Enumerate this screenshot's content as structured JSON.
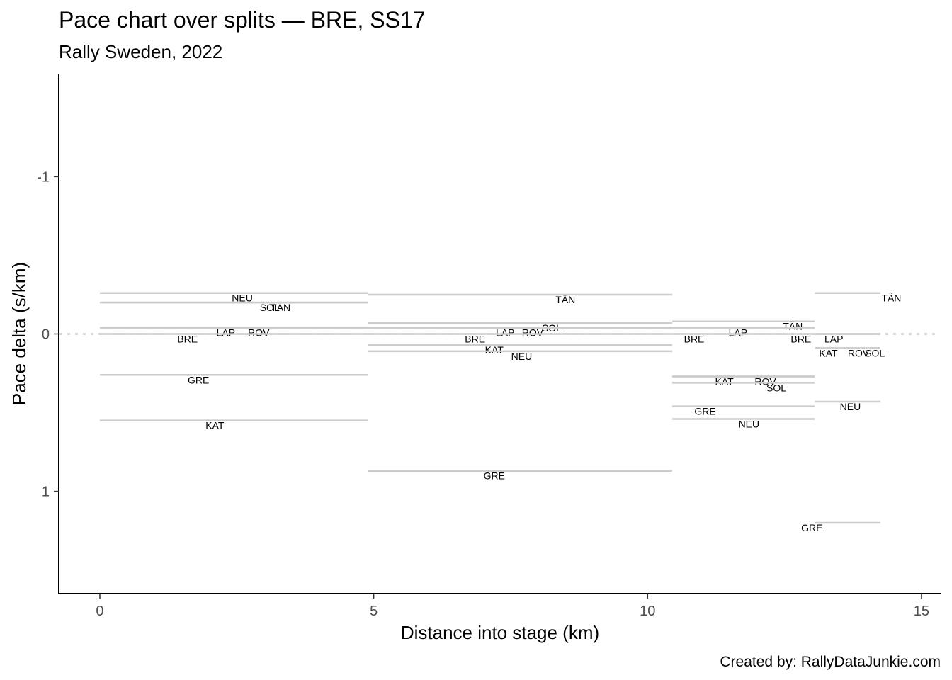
{
  "chart_data": {
    "type": "segment",
    "title": "Pace chart over splits — BRE, SS17",
    "subtitle": "Rally Sweden, 2022",
    "xlabel": "Distance into stage (km)",
    "ylabel": "Pace delta (s/km)",
    "caption": "Created by: RallyDataJunkie.com",
    "xlim": [
      -0.75,
      15.35
    ],
    "ylim": [
      1.65,
      -1.65
    ],
    "y_reversed": true,
    "xticks": [
      0,
      5,
      10,
      15
    ],
    "yticks": [
      -1,
      0,
      1
    ],
    "ytick_labels": [
      "-1",
      "0",
      "1"
    ],
    "reference_line": {
      "y": 0,
      "style": "dotted"
    },
    "grid": false,
    "splits": [
      {
        "start": 0,
        "end": 4.9,
        "drivers": [
          {
            "code": "NEU",
            "delta": -0.26,
            "label_x": 2.6
          },
          {
            "code": "TÄN",
            "delta": -0.2,
            "label_x": 3.3
          },
          {
            "code": "SOL",
            "delta": -0.2,
            "label_x": 3.1
          },
          {
            "code": "ROV",
            "delta": -0.04,
            "label_x": 2.9
          },
          {
            "code": "LAP",
            "delta": -0.04,
            "label_x": 2.3
          },
          {
            "code": "BRE",
            "delta": 0.0,
            "label_x": 1.6
          },
          {
            "code": "GRE",
            "delta": 0.26,
            "label_x": 1.8
          },
          {
            "code": "KAT",
            "delta": 0.55,
            "label_x": 2.1
          }
        ]
      },
      {
        "start": 4.9,
        "end": 10.45,
        "drivers": [
          {
            "code": "TÄN",
            "delta": -0.25,
            "label_x": 8.5
          },
          {
            "code": "SOL",
            "delta": -0.07,
            "label_x": 8.25
          },
          {
            "code": "ROV",
            "delta": -0.04,
            "label_x": 7.9
          },
          {
            "code": "LAP",
            "delta": -0.04,
            "label_x": 7.4
          },
          {
            "code": "BRE",
            "delta": 0.0,
            "label_x": 6.85
          },
          {
            "code": "KAT",
            "delta": 0.07,
            "label_x": 7.2
          },
          {
            "code": "NEU",
            "delta": 0.11,
            "label_x": 7.7
          },
          {
            "code": "GRE",
            "delta": 0.87,
            "label_x": 7.2
          }
        ]
      },
      {
        "start": 10.45,
        "end": 13.05,
        "drivers": [
          {
            "code": "TÄN",
            "delta": -0.08,
            "label_x": 12.65
          },
          {
            "code": "LAP",
            "delta": -0.04,
            "label_x": 11.65
          },
          {
            "code": "BRE",
            "delta": 0.0,
            "label_x": 10.85
          },
          {
            "code": "ROV",
            "delta": 0.27,
            "label_x": 12.15
          },
          {
            "code": "KAT",
            "delta": 0.27,
            "label_x": 11.4
          },
          {
            "code": "SOL",
            "delta": 0.31,
            "label_x": 12.35
          },
          {
            "code": "GRE",
            "delta": 0.46,
            "label_x": 11.05
          },
          {
            "code": "NEU",
            "delta": 0.54,
            "label_x": 11.85
          }
        ]
      },
      {
        "start": 13.05,
        "end": 14.25,
        "drivers": [
          {
            "code": "TÄN",
            "delta": -0.26,
            "label_x": 14.45
          },
          {
            "code": "BRE",
            "delta": 0.0,
            "label_x": 12.8
          },
          {
            "code": "LAP",
            "delta": 0.0,
            "label_x": 13.4
          },
          {
            "code": "ROV",
            "delta": 0.09,
            "label_x": 13.85
          },
          {
            "code": "KAT",
            "delta": 0.09,
            "label_x": 13.3
          },
          {
            "code": "SOL",
            "delta": 0.09,
            "label_x": 14.15
          },
          {
            "code": "NEU",
            "delta": 0.43,
            "label_x": 13.7
          },
          {
            "code": "GRE",
            "delta": 1.2,
            "label_x": 13.0
          }
        ]
      }
    ]
  }
}
